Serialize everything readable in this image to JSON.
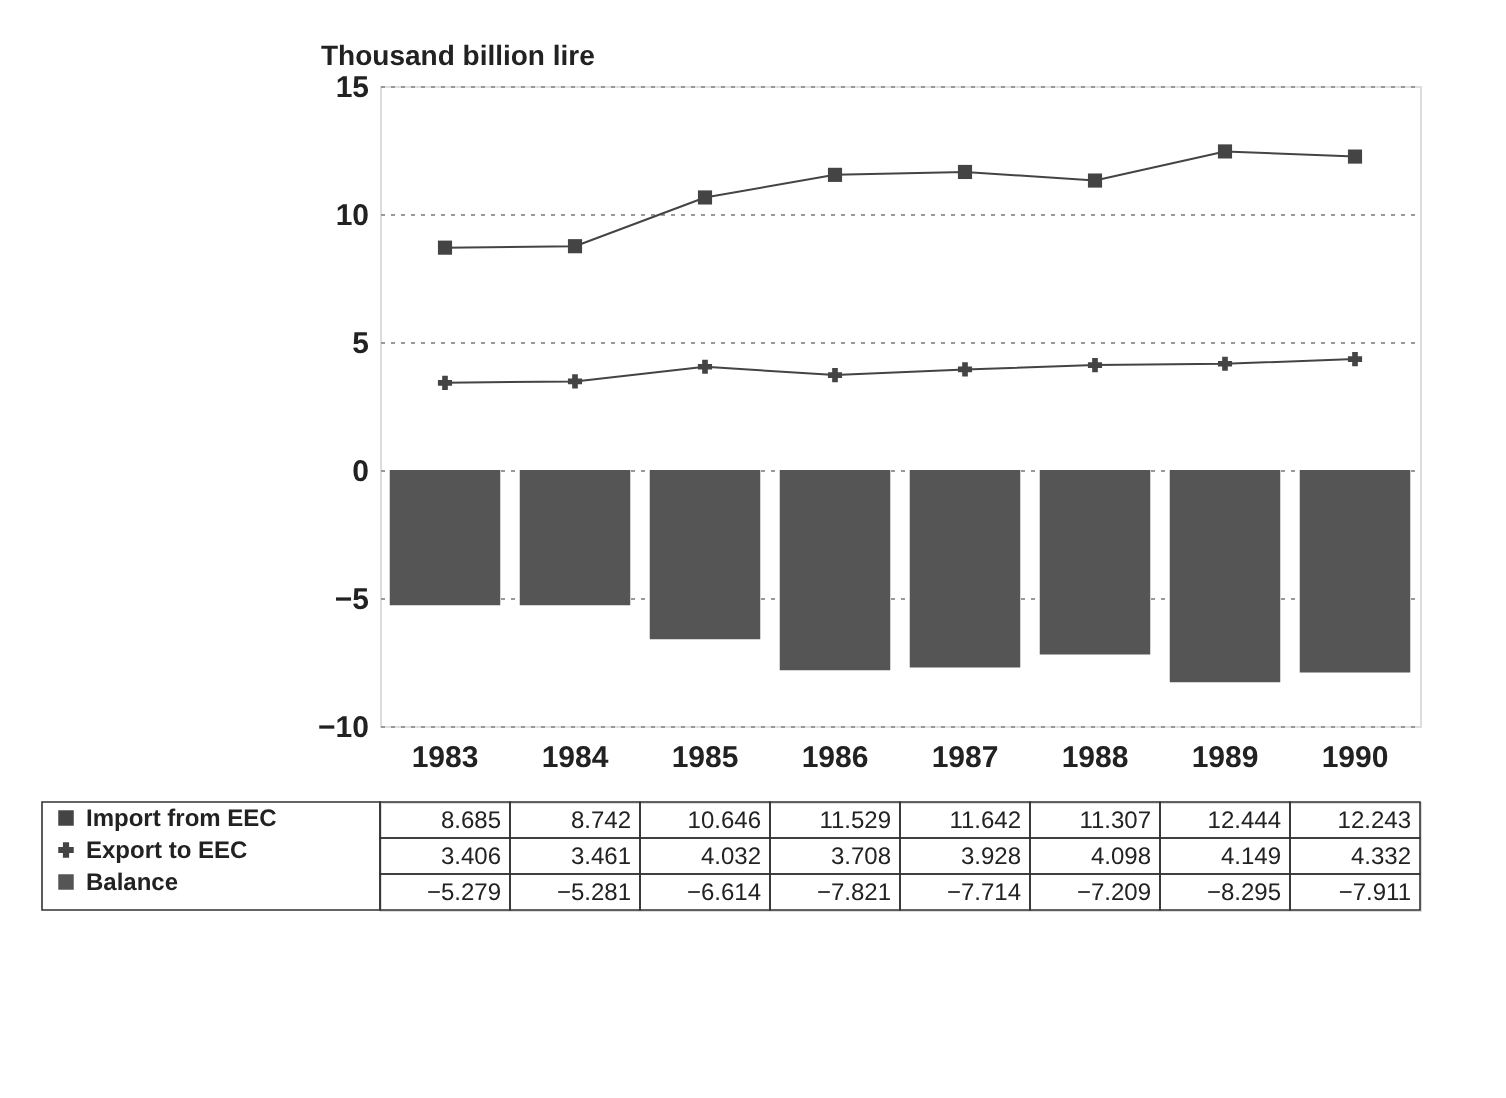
{
  "chart_data": {
    "type": "bar",
    "ylabel": "Thousand billion lire",
    "categories": [
      "1983",
      "1984",
      "1985",
      "1986",
      "1987",
      "1988",
      "1989",
      "1990"
    ],
    "series": [
      {
        "name": "Import from EEC",
        "type": "line",
        "marker": "square",
        "color": "#444444",
        "values": [
          8.685,
          8.742,
          10.646,
          11.529,
          11.642,
          11.307,
          12.444,
          12.243
        ]
      },
      {
        "name": "Export to EEC",
        "type": "line",
        "marker": "cross",
        "color": "#444444",
        "values": [
          3.406,
          3.461,
          4.032,
          3.708,
          3.928,
          4.098,
          4.149,
          4.332
        ]
      },
      {
        "name": "Balance",
        "color": "#555555",
        "values": [
          -5.279,
          -5.281,
          -6.614,
          -7.821,
          -7.714,
          -7.209,
          -8.295,
          -7.911
        ]
      }
    ],
    "ylim": [
      -10,
      15
    ],
    "yticks": [
      -10,
      -5,
      0,
      5,
      10,
      15
    ],
    "grid": "y",
    "legend": "bottom",
    "data_labels": true
  }
}
